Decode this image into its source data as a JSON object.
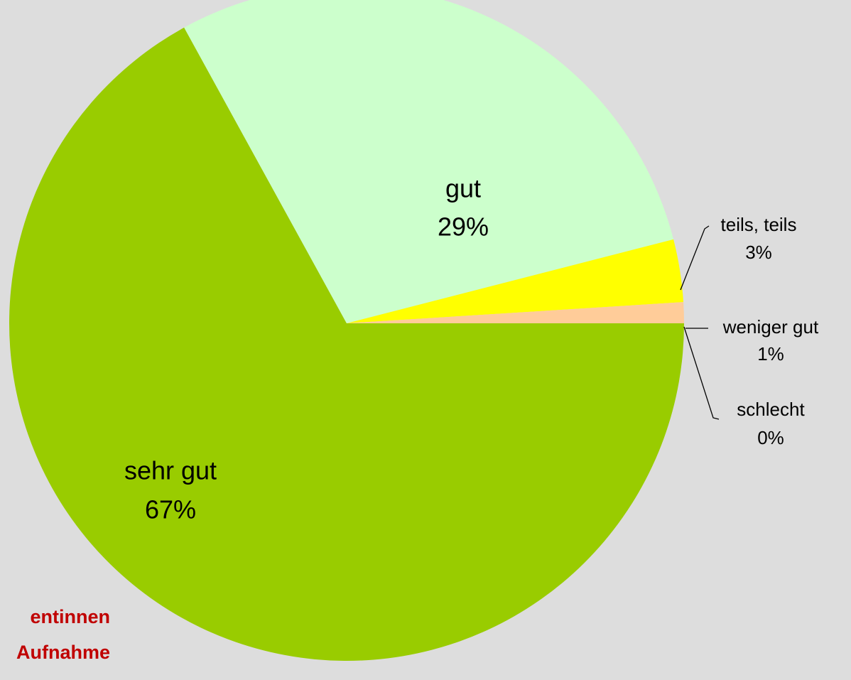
{
  "chart_data": {
    "type": "pie",
    "categories": [
      "sehr gut",
      "gut",
      "teils, teils",
      "weniger gut",
      "schlecht"
    ],
    "values": [
      67,
      29,
      3,
      1,
      0
    ],
    "value_labels": [
      "67%",
      "29%",
      "3%",
      "1%",
      "0%"
    ],
    "colors": [
      "#99cc00",
      "#ccffcc",
      "#ffff00",
      "#ffcc99",
      "#ff9966"
    ],
    "annotations": [
      "entinnen",
      "Aufnahme"
    ]
  }
}
